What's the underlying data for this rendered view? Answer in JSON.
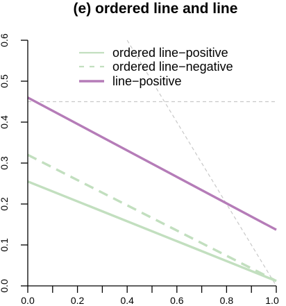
{
  "chart_data": {
    "type": "line",
    "title": "(e) ordered line and line",
    "xlabel": "",
    "ylabel": "",
    "xlim": [
      0.0,
      1.0
    ],
    "ylim": [
      0.0,
      0.6
    ],
    "x_ticks": [
      0.0,
      0.2,
      0.4,
      0.6,
      0.8,
      1.0
    ],
    "x_tick_labels": [
      "0.0",
      "0.2",
      "0.4",
      "0.6",
      "0.8",
      "1.0"
    ],
    "y_ticks": [
      0.0,
      0.1,
      0.2,
      0.3,
      0.4,
      0.5,
      0.6
    ],
    "y_tick_labels": [
      "0.0",
      "0.1",
      "0.2",
      "0.3",
      "0.4",
      "0.5",
      "0.6"
    ],
    "legend_position": "top-right",
    "series": [
      {
        "name": "ordered line−positive",
        "x": [
          0.0,
          1.0
        ],
        "y": [
          0.255,
          0.012
        ],
        "color": "#c2dfbf",
        "style": "solid"
      },
      {
        "name": "ordered line−negative",
        "x": [
          0.0,
          1.0
        ],
        "y": [
          0.32,
          0.012
        ],
        "color": "#c2dfbf",
        "style": "dashed"
      },
      {
        "name": "line−positive",
        "x": [
          0.0,
          1.0
        ],
        "y": [
          0.46,
          0.137
        ],
        "color": "#b57cb8",
        "style": "solid"
      }
    ],
    "reference_lines": [
      {
        "x": [
          0.0,
          1.0
        ],
        "y": [
          0.45,
          0.45
        ],
        "color": "#c8c8c8",
        "style": "dotted"
      },
      {
        "x": [
          0.4,
          1.0
        ],
        "y": [
          0.6,
          0.0
        ],
        "color": "#c8c8c8",
        "style": "dotted"
      }
    ]
  }
}
